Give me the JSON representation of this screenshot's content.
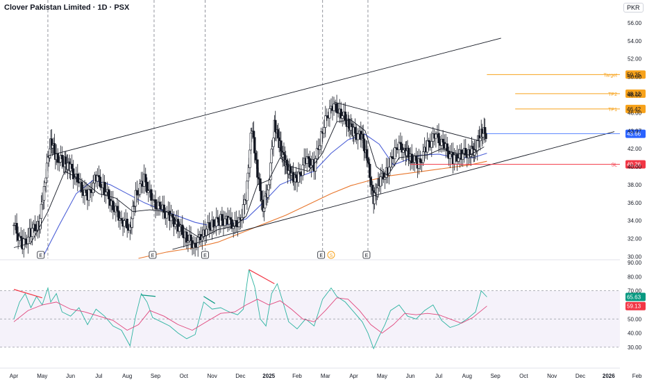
{
  "header": {
    "title": "Clover Pakistan Limited · 1D · PSX",
    "currency": "PKR"
  },
  "chart_data": {
    "type": "candlestick",
    "price_axis": {
      "ticks": [
        "56.00",
        "54.00",
        "52.00",
        "50.00",
        "48.00",
        "46.00",
        "43.97",
        "42.00",
        "40.00",
        "38.00",
        "36.00",
        "34.00",
        "32.00",
        "30.00"
      ],
      "tick_values": [
        56,
        54,
        52,
        50,
        48,
        46,
        43.97,
        42,
        40,
        38,
        36,
        34,
        32,
        30
      ],
      "range": [
        29.8,
        57.0
      ]
    },
    "rsi_axis": {
      "ticks": [
        "90.00",
        "80.00",
        "70.00",
        "60.00",
        "50.00",
        "40.00",
        "30.00"
      ],
      "tick_values": [
        90,
        80,
        70,
        60,
        50,
        40,
        30
      ],
      "range": [
        27,
        91
      ]
    },
    "time_axis": {
      "labels": [
        "Apr",
        "May",
        "Jun",
        "Jul",
        "Aug",
        "Sep",
        "Oct",
        "Nov",
        "Dec",
        "2025",
        "Feb",
        "Mar",
        "Apr",
        "May",
        "Jun",
        "Jul",
        "Aug",
        "Sep",
        "Oct",
        "Nov",
        "Dec",
        "2026",
        "Feb"
      ],
      "bold": [
        "2025",
        "2026"
      ],
      "month_index": [
        0,
        1,
        2,
        3,
        4,
        5,
        6,
        7,
        8,
        9,
        10,
        11,
        12,
        13,
        14,
        15,
        16,
        17,
        18,
        19,
        20,
        21,
        22
      ]
    },
    "levels": [
      {
        "name": "Target",
        "label": "Target",
        "value": 50.25,
        "badge": "50.25",
        "color": "#f7a21b",
        "start_month": 16.7
      },
      {
        "name": "TP2",
        "label": "TP2",
        "value": 48.12,
        "badge": "48.12",
        "color": "#f7a21b",
        "start_month": 17.7
      },
      {
        "name": "TP1",
        "label": "TP1",
        "value": 46.42,
        "badge": "46.42",
        "color": "#f7a21b",
        "start_month": 17.7
      },
      {
        "name": "SL",
        "label": "SL",
        "value": 40.26,
        "badge": "40.26",
        "color": "#f23645",
        "start_month": 14.0
      }
    ],
    "last_price": {
      "value": 43.66,
      "badge": "43.66",
      "color": "#2962ff"
    },
    "rsi_last": {
      "value": 65.63,
      "badge": "65.63",
      "color": "#089981"
    },
    "rsi_ma_last": {
      "value": 59.13,
      "badge": "59.13",
      "color": "#f23645"
    },
    "rsi_bands": {
      "upper": 70,
      "middle": 50,
      "lower": 30
    },
    "channel": {
      "upper": [
        [
          1.2,
          41.2
        ],
        [
          17.2,
          54.3
        ]
      ],
      "lower": [
        [
          5.6,
          30.8
        ],
        [
          21.2,
          43.9
        ]
      ]
    },
    "triangle_upper": [
      [
        11.3,
        47.2
      ],
      [
        16.4,
        42.9
      ]
    ],
    "earnings_marks": [
      {
        "month": 0.95,
        "label": "E"
      },
      {
        "month": 4.9,
        "label": "E"
      },
      {
        "month": 6.75,
        "label": "E"
      },
      {
        "month": 10.85,
        "label": "E"
      },
      {
        "month": 12.45,
        "label": "E"
      }
    ],
    "dividend_marks": [
      {
        "month": 11.2,
        "label": "S"
      }
    ],
    "event_lines_month": [
      1.2,
      4.95,
      6.75,
      10.9,
      12.5
    ],
    "price_series": [
      [
        0.0,
        33.5
      ],
      [
        0.3,
        31.2
      ],
      [
        0.6,
        32.8
      ],
      [
        0.9,
        33.6
      ],
      [
        1.1,
        38.5
      ],
      [
        1.3,
        43.0
      ],
      [
        1.5,
        41.0
      ],
      [
        1.8,
        40.5
      ],
      [
        2.0,
        39.8
      ],
      [
        2.3,
        38.0
      ],
      [
        2.6,
        36.5
      ],
      [
        2.9,
        38.9
      ],
      [
        3.2,
        37.5
      ],
      [
        3.5,
        35.6
      ],
      [
        3.8,
        34.1
      ],
      [
        4.1,
        33.2
      ],
      [
        4.3,
        36.8
      ],
      [
        4.6,
        38.6
      ],
      [
        4.9,
        36.0
      ],
      [
        5.2,
        35.3
      ],
      [
        5.5,
        34.4
      ],
      [
        5.8,
        33.4
      ],
      [
        6.1,
        32.1
      ],
      [
        6.4,
        31.3
      ],
      [
        6.7,
        32.8
      ],
      [
        7.0,
        33.6
      ],
      [
        7.3,
        34.1
      ],
      [
        7.6,
        33.9
      ],
      [
        7.9,
        33.2
      ],
      [
        8.2,
        36.5
      ],
      [
        8.4,
        44.5
      ],
      [
        8.6,
        39.4
      ],
      [
        8.8,
        35.4
      ],
      [
        9.0,
        38.0
      ],
      [
        9.2,
        44.8
      ],
      [
        9.4,
        42.3
      ],
      [
        9.6,
        40.2
      ],
      [
        9.8,
        39.0
      ],
      [
        10.0,
        38.4
      ],
      [
        10.3,
        40.8
      ],
      [
        10.6,
        40.1
      ],
      [
        10.9,
        44.2
      ],
      [
        11.2,
        46.9
      ],
      [
        11.5,
        46.2
      ],
      [
        11.8,
        44.8
      ],
      [
        12.0,
        43.8
      ],
      [
        12.3,
        43.2
      ],
      [
        12.5,
        40.4
      ],
      [
        12.7,
        36.2
      ],
      [
        12.9,
        38.4
      ],
      [
        13.2,
        39.6
      ],
      [
        13.5,
        42.4
      ],
      [
        13.8,
        42.0
      ],
      [
        14.0,
        41.0
      ],
      [
        14.3,
        40.3
      ],
      [
        14.6,
        42.4
      ],
      [
        14.9,
        43.4
      ],
      [
        15.2,
        42.2
      ],
      [
        15.5,
        40.8
      ],
      [
        15.8,
        41.4
      ],
      [
        16.1,
        41.6
      ],
      [
        16.3,
        42.0
      ],
      [
        16.5,
        43.9
      ],
      [
        16.7,
        43.66
      ]
    ],
    "ma_black": [
      [
        0.0,
        31.0
      ],
      [
        0.6,
        31.5
      ],
      [
        1.2,
        35.0
      ],
      [
        1.8,
        39.5
      ],
      [
        2.4,
        38.5
      ],
      [
        3.0,
        37.0
      ],
      [
        3.6,
        36.5
      ],
      [
        4.2,
        35.0
      ],
      [
        4.8,
        35.2
      ],
      [
        5.4,
        35.0
      ],
      [
        6.0,
        33.2
      ],
      [
        6.6,
        32.0
      ],
      [
        7.2,
        33.0
      ],
      [
        7.8,
        33.4
      ],
      [
        8.2,
        34.5
      ],
      [
        8.6,
        38.0
      ],
      [
        9.0,
        38.5
      ],
      [
        9.4,
        41.0
      ],
      [
        9.8,
        40.0
      ],
      [
        10.4,
        39.5
      ],
      [
        10.9,
        41.5
      ],
      [
        11.4,
        45.0
      ],
      [
        11.9,
        45.2
      ],
      [
        12.4,
        44.0
      ],
      [
        12.8,
        40.0
      ],
      [
        13.2,
        39.0
      ],
      [
        13.6,
        41.0
      ],
      [
        14.1,
        41.2
      ],
      [
        14.6,
        41.3
      ],
      [
        15.1,
        42.0
      ],
      [
        15.6,
        41.5
      ],
      [
        16.1,
        41.3
      ],
      [
        16.6,
        42.2
      ]
    ],
    "ma_blue": [
      [
        1.0,
        29.8
      ],
      [
        1.6,
        33.5
      ],
      [
        2.2,
        37.0
      ],
      [
        2.8,
        38.5
      ],
      [
        3.4,
        38.0
      ],
      [
        4.0,
        37.0
      ],
      [
        4.6,
        36.0
      ],
      [
        5.2,
        35.2
      ],
      [
        5.8,
        34.5
      ],
      [
        6.4,
        33.8
      ],
      [
        7.0,
        33.4
      ],
      [
        7.6,
        33.6
      ],
      [
        8.2,
        34.2
      ],
      [
        8.8,
        36.0
      ],
      [
        9.4,
        38.0
      ],
      [
        10.0,
        38.8
      ],
      [
        10.6,
        39.5
      ],
      [
        11.2,
        41.5
      ],
      [
        11.8,
        43.0
      ],
      [
        12.4,
        43.6
      ],
      [
        12.9,
        42.5
      ],
      [
        13.4,
        40.2
      ],
      [
        13.9,
        40.8
      ],
      [
        14.4,
        41.3
      ],
      [
        15.0,
        41.4
      ],
      [
        15.6,
        41.0
      ],
      [
        16.2,
        41.0
      ],
      [
        16.7,
        41.5
      ]
    ],
    "ma_orange": [
      [
        4.4,
        29.8
      ],
      [
        5.4,
        30.5
      ],
      [
        6.4,
        31.0
      ],
      [
        7.2,
        31.6
      ],
      [
        8.0,
        32.6
      ],
      [
        8.8,
        33.6
      ],
      [
        9.6,
        34.6
      ],
      [
        10.4,
        35.8
      ],
      [
        11.2,
        37.0
      ],
      [
        11.9,
        37.9
      ],
      [
        12.6,
        38.5
      ],
      [
        13.3,
        39.0
      ],
      [
        14.0,
        39.3
      ],
      [
        14.7,
        39.6
      ],
      [
        15.4,
        39.9
      ],
      [
        16.1,
        40.2
      ],
      [
        16.7,
        40.6
      ]
    ],
    "rsi_series": [
      [
        0.0,
        50
      ],
      [
        0.2,
        62
      ],
      [
        0.4,
        68
      ],
      [
        0.6,
        58
      ],
      [
        0.8,
        66
      ],
      [
        1.0,
        60
      ],
      [
        1.2,
        72
      ],
      [
        1.3,
        62
      ],
      [
        1.5,
        68
      ],
      [
        1.7,
        55
      ],
      [
        2.0,
        52
      ],
      [
        2.3,
        58
      ],
      [
        2.6,
        46
      ],
      [
        2.9,
        57
      ],
      [
        3.2,
        52
      ],
      [
        3.5,
        45
      ],
      [
        3.8,
        42
      ],
      [
        4.1,
        31
      ],
      [
        4.3,
        52
      ],
      [
        4.5,
        68
      ],
      [
        4.7,
        62
      ],
      [
        4.9,
        51
      ],
      [
        5.2,
        48
      ],
      [
        5.5,
        45
      ],
      [
        5.8,
        40
      ],
      [
        6.1,
        36
      ],
      [
        6.4,
        39
      ],
      [
        6.7,
        62
      ],
      [
        7.0,
        57
      ],
      [
        7.3,
        58
      ],
      [
        7.6,
        55
      ],
      [
        7.9,
        53
      ],
      [
        8.1,
        57
      ],
      [
        8.3,
        85
      ],
      [
        8.5,
        73
      ],
      [
        8.7,
        50
      ],
      [
        8.9,
        45
      ],
      [
        9.1,
        68
      ],
      [
        9.3,
        75
      ],
      [
        9.5,
        62
      ],
      [
        9.7,
        48
      ],
      [
        10.0,
        43
      ],
      [
        10.3,
        50
      ],
      [
        10.6,
        45
      ],
      [
        10.9,
        64
      ],
      [
        11.2,
        72
      ],
      [
        11.4,
        66
      ],
      [
        11.7,
        62
      ],
      [
        12.0,
        55
      ],
      [
        12.3,
        48
      ],
      [
        12.5,
        40
      ],
      [
        12.7,
        29
      ],
      [
        12.9,
        38
      ],
      [
        13.1,
        46
      ],
      [
        13.3,
        56
      ],
      [
        13.6,
        60
      ],
      [
        13.9,
        52
      ],
      [
        14.2,
        50
      ],
      [
        14.5,
        56
      ],
      [
        14.8,
        60
      ],
      [
        15.1,
        49
      ],
      [
        15.4,
        44
      ],
      [
        15.7,
        46
      ],
      [
        16.0,
        50
      ],
      [
        16.3,
        55
      ],
      [
        16.5,
        70
      ],
      [
        16.7,
        65.63
      ]
    ],
    "rsi_ma": [
      [
        0.0,
        48
      ],
      [
        0.5,
        56
      ],
      [
        1.0,
        60
      ],
      [
        1.5,
        62
      ],
      [
        2.0,
        57
      ],
      [
        2.5,
        55
      ],
      [
        3.0,
        52
      ],
      [
        3.5,
        49
      ],
      [
        4.0,
        42
      ],
      [
        4.4,
        46
      ],
      [
        4.8,
        56
      ],
      [
        5.3,
        52
      ],
      [
        5.8,
        46
      ],
      [
        6.3,
        42
      ],
      [
        6.8,
        48
      ],
      [
        7.3,
        54
      ],
      [
        7.8,
        55
      ],
      [
        8.2,
        60
      ],
      [
        8.6,
        64
      ],
      [
        9.0,
        60
      ],
      [
        9.4,
        63
      ],
      [
        9.8,
        57
      ],
      [
        10.2,
        50
      ],
      [
        10.6,
        48
      ],
      [
        11.0,
        56
      ],
      [
        11.4,
        65
      ],
      [
        11.8,
        64
      ],
      [
        12.2,
        56
      ],
      [
        12.6,
        46
      ],
      [
        13.0,
        40
      ],
      [
        13.4,
        46
      ],
      [
        13.8,
        54
      ],
      [
        14.2,
        53
      ],
      [
        14.6,
        54
      ],
      [
        15.0,
        53
      ],
      [
        15.4,
        50
      ],
      [
        15.8,
        47
      ],
      [
        16.2,
        51
      ],
      [
        16.7,
        59.13
      ]
    ],
    "divergence_lines": [
      {
        "from": [
          0.0,
          71
        ],
        "to": [
          1.0,
          65
        ],
        "color": "#f23645"
      },
      {
        "from": [
          8.3,
          85
        ],
        "to": [
          9.2,
          75
        ],
        "color": "#f23645"
      },
      {
        "from": [
          4.5,
          67
        ],
        "to": [
          5.0,
          66
        ],
        "color": "#089981"
      },
      {
        "from": [
          6.7,
          66
        ],
        "to": [
          7.1,
          61
        ],
        "color": "#089981"
      }
    ]
  }
}
